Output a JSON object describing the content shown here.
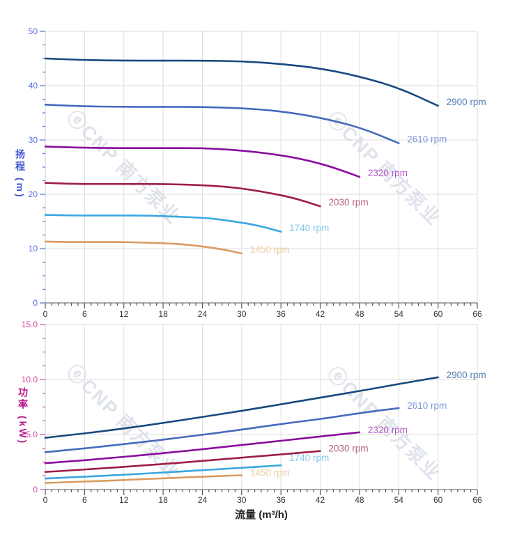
{
  "watermark": {
    "text": "ⓔCNP 南方泵业",
    "color": "#dfe3eb"
  },
  "x_axis_title": "流量 (m³/h)",
  "chart_data": [
    {
      "type": "line",
      "title": "",
      "ylabel": "扬程 (m)",
      "xlabel": "流量 (m³/h)",
      "xlim": [
        0,
        66
      ],
      "ylim": [
        0,
        50
      ],
      "grid": true,
      "legend_position": "line-end-labels",
      "x_tick_labels": [
        "0",
        "6",
        "12",
        "18",
        "24",
        "30",
        "36",
        "42",
        "48",
        "54",
        "60",
        "66"
      ],
      "x_major_step": 6,
      "x_minor_step": 1,
      "y_tick_labels": [
        "0",
        "10",
        "20",
        "30",
        "40",
        "50"
      ],
      "y_major_step": 10,
      "y_minor_step": 2.5,
      "axis_title_color": "#4254cf",
      "y_tick_color": "#5b6ee2",
      "x_tick_color": "#333333",
      "series": [
        {
          "name": "2900 rpm",
          "color": "#17497e",
          "label_color": "#4e7bb0",
          "x": [
            0,
            6,
            12,
            18,
            24,
            30,
            36,
            42,
            48,
            54,
            60
          ],
          "y": [
            45.0,
            44.7,
            44.6,
            44.6,
            44.6,
            44.5,
            44.0,
            43.2,
            41.7,
            39.6,
            36.3
          ]
        },
        {
          "name": "2610 rpm",
          "color": "#4569bd",
          "label_color": "#7f9bd5",
          "x": [
            0,
            5.4,
            10.8,
            16.2,
            21.6,
            27,
            32.4,
            37.8,
            43.2,
            48.6,
            54
          ],
          "y": [
            36.5,
            36.2,
            36.1,
            36.1,
            36.1,
            36.0,
            35.7,
            35.0,
            33.8,
            32.1,
            29.4
          ]
        },
        {
          "name": "2320 rpm",
          "color": "#8a0d9e",
          "label_color": "#b259c2",
          "x": [
            0,
            4.8,
            9.6,
            14.4,
            19.2,
            24,
            28.8,
            33.6,
            38.4,
            43.2,
            48
          ],
          "y": [
            28.8,
            28.6,
            28.5,
            28.5,
            28.5,
            28.5,
            28.2,
            27.6,
            26.7,
            25.3,
            23.2
          ]
        },
        {
          "name": "2030 rpm",
          "color": "#9e1c49",
          "label_color": "#b65e80",
          "x": [
            0,
            4.2,
            8.4,
            12.6,
            16.8,
            21,
            25.2,
            29.4,
            33.6,
            37.8,
            42
          ],
          "y": [
            22.1,
            21.9,
            21.9,
            21.9,
            21.9,
            21.8,
            21.6,
            21.2,
            20.4,
            19.4,
            17.8
          ]
        },
        {
          "name": "1740 rpm",
          "color": "#39a7e0",
          "label_color": "#84c9ed",
          "x": [
            0,
            3.6,
            7.2,
            10.8,
            14.4,
            18,
            21.6,
            25.2,
            28.8,
            32.4,
            36
          ],
          "y": [
            16.2,
            16.1,
            16.1,
            16.1,
            16.1,
            16.0,
            15.8,
            15.6,
            15.0,
            14.3,
            13.1
          ]
        },
        {
          "name": "1450 rpm",
          "color": "#d99b5f",
          "label_color": "#edcda3",
          "x": [
            0,
            3,
            6,
            9,
            12,
            15,
            18,
            21,
            24,
            27,
            30
          ],
          "y": [
            11.3,
            11.2,
            11.2,
            11.2,
            11.2,
            11.1,
            11.0,
            10.8,
            10.4,
            9.9,
            9.1
          ]
        }
      ]
    },
    {
      "type": "line",
      "title": "",
      "ylabel": "功率 (kW)",
      "xlabel": "流量 (m³/h)",
      "xlim": [
        0,
        66
      ],
      "ylim": [
        0,
        15
      ],
      "grid": true,
      "legend_position": "line-end-labels",
      "x_tick_labels": [
        "0",
        "6",
        "12",
        "18",
        "24",
        "30",
        "36",
        "42",
        "48",
        "54",
        "60",
        "66"
      ],
      "x_major_step": 6,
      "x_minor_step": 1,
      "y_tick_labels": [
        "0",
        "5.0",
        "10.0",
        "15.0"
      ],
      "y_major_step": 5,
      "y_minor_step": 1.25,
      "axis_title_color": "#b5158a",
      "y_tick_color": "#d4479a",
      "x_tick_color": "#333333",
      "series": [
        {
          "name": "2900 rpm",
          "color": "#17497e",
          "label_color": "#4e7bb0",
          "x": [
            0,
            6,
            12,
            18,
            24,
            30,
            36,
            42,
            48,
            54,
            60
          ],
          "y": [
            4.7,
            5.1,
            5.55,
            6.05,
            6.6,
            7.15,
            7.75,
            8.35,
            8.95,
            9.6,
            10.2
          ]
        },
        {
          "name": "2610 rpm",
          "color": "#4569bd",
          "label_color": "#7f9bd5",
          "x": [
            0,
            5.4,
            10.8,
            16.2,
            21.6,
            27,
            32.4,
            37.8,
            43.2,
            48.6,
            54
          ],
          "y": [
            3.4,
            3.7,
            4.05,
            4.4,
            4.8,
            5.2,
            5.65,
            6.1,
            6.5,
            7.0,
            7.4
          ]
        },
        {
          "name": "2320 rpm",
          "color": "#8a0d9e",
          "label_color": "#b259c2",
          "x": [
            0,
            4.8,
            9.6,
            14.4,
            19.2,
            24,
            28.8,
            33.6,
            38.4,
            43.2,
            48
          ],
          "y": [
            2.4,
            2.6,
            2.85,
            3.1,
            3.38,
            3.66,
            3.97,
            4.28,
            4.58,
            4.9,
            5.2
          ]
        },
        {
          "name": "2030 rpm",
          "color": "#9e1c49",
          "label_color": "#b65e80",
          "x": [
            0,
            4.2,
            8.4,
            12.6,
            16.8,
            21,
            25.2,
            29.4,
            33.6,
            37.8,
            42
          ],
          "y": [
            1.6,
            1.75,
            1.92,
            2.08,
            2.27,
            2.45,
            2.66,
            2.87,
            3.07,
            3.29,
            3.5
          ]
        },
        {
          "name": "1740 rpm",
          "color": "#39a7e0",
          "label_color": "#84c9ed",
          "label_dy": -6,
          "x": [
            0,
            3.6,
            7.2,
            10.8,
            14.4,
            18,
            21.6,
            25.2,
            28.8,
            32.4,
            36
          ],
          "y": [
            1.0,
            1.1,
            1.2,
            1.31,
            1.43,
            1.54,
            1.67,
            1.8,
            1.93,
            2.07,
            2.2
          ]
        },
        {
          "name": "1450 rpm",
          "color": "#d99b5f",
          "label_color": "#edcda3",
          "x": [
            0,
            3,
            6,
            9,
            12,
            15,
            18,
            21,
            24,
            27,
            30
          ],
          "y": [
            0.6,
            0.66,
            0.73,
            0.79,
            0.87,
            0.94,
            1.02,
            1.09,
            1.16,
            1.23,
            1.3
          ]
        }
      ]
    }
  ]
}
